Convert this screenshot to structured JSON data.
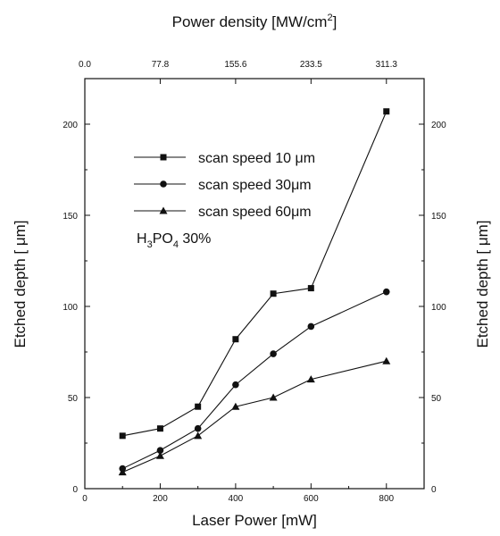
{
  "chart_data": {
    "type": "line",
    "xlabel": "Laser Power [mW]",
    "ylabel": "Etched depth [  μm]",
    "ylabel_right": "Etched depth [  μm]",
    "top_axis_label": {
      "text": "Power density [MW/cm",
      "sup": "2",
      "tail": "]"
    },
    "top_ticks": [
      {
        "x": 0,
        "label": "0.0"
      },
      {
        "x": 200,
        "label": "77.8"
      },
      {
        "x": 400,
        "label": "155.6"
      },
      {
        "x": 600,
        "label": "233.5"
      },
      {
        "x": 800,
        "label": "311.3"
      }
    ],
    "xlim": [
      0,
      900
    ],
    "ylim": [
      0,
      225
    ],
    "x_ticks": [
      0,
      200,
      400,
      600,
      800
    ],
    "y_ticks": [
      0,
      50,
      100,
      150,
      200
    ],
    "grid": false,
    "legend_position": "top-left",
    "annotation": {
      "parts": [
        {
          "t": "H"
        },
        {
          "t": "3",
          "sub": true
        },
        {
          "t": "PO"
        },
        {
          "t": "4",
          "sub": true
        },
        {
          "t": " 30%"
        }
      ]
    },
    "series": [
      {
        "name": "scan speed 10 μm",
        "marker": "square",
        "x": [
          100,
          200,
          300,
          400,
          500,
          600,
          800
        ],
        "y": [
          29,
          33,
          45,
          82,
          107,
          110,
          207
        ]
      },
      {
        "name": "scan speed 30μm",
        "marker": "circle",
        "x": [
          100,
          200,
          300,
          400,
          500,
          600,
          800
        ],
        "y": [
          11,
          21,
          33,
          57,
          74,
          89,
          108
        ]
      },
      {
        "name": "scan speed 60μm",
        "marker": "triangle",
        "x": [
          100,
          200,
          300,
          400,
          500,
          600,
          800
        ],
        "y": [
          9,
          18,
          29,
          45,
          50,
          60,
          70
        ]
      }
    ]
  }
}
